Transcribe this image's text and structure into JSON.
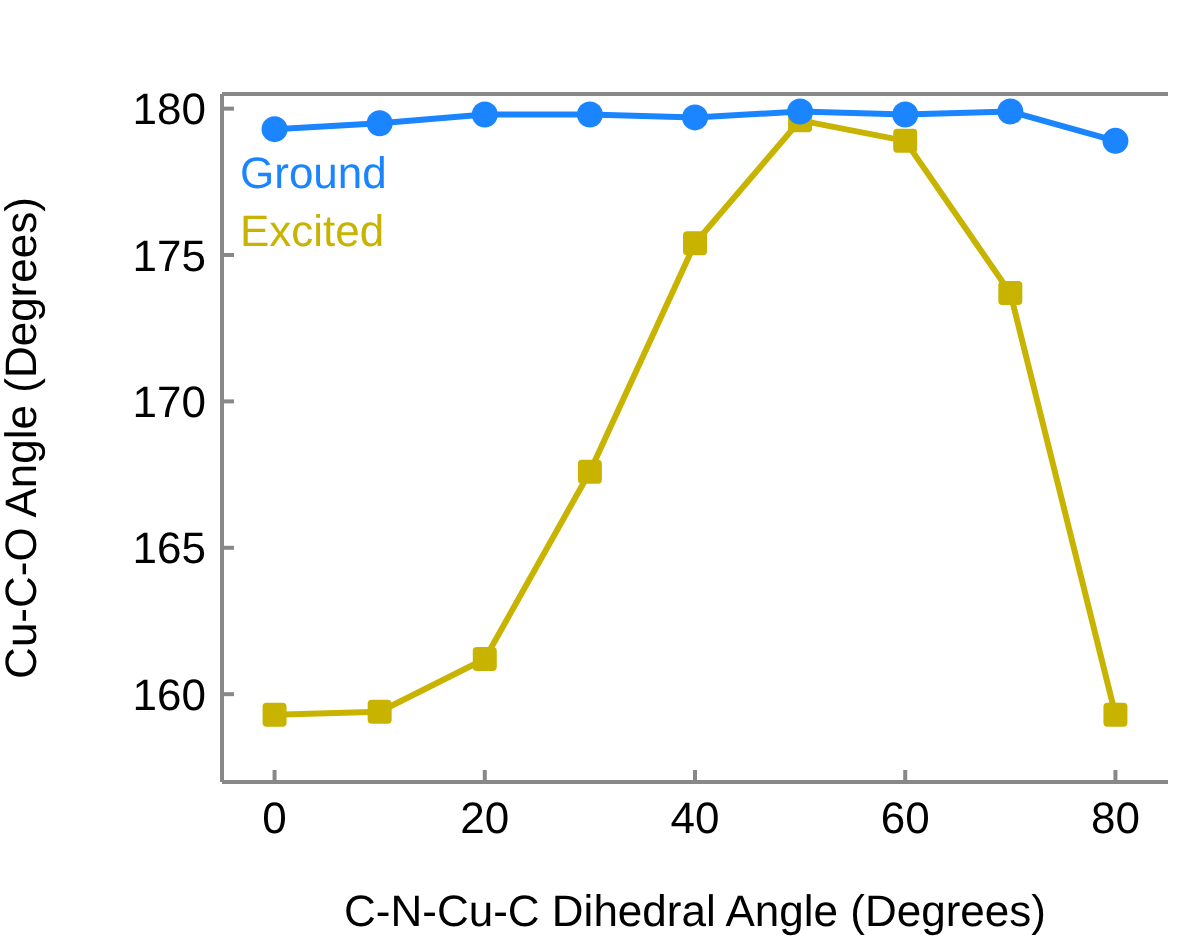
{
  "chart_data": {
    "type": "line",
    "xlabel": "C-N-Cu-C Dihedral Angle (Degrees)",
    "ylabel": "Cu-C-O Angle (Degrees)",
    "x": [
      0,
      10,
      20,
      30,
      40,
      50,
      60,
      70,
      80
    ],
    "series": [
      {
        "name": "Ground",
        "color": "#1a85ff",
        "marker": "circle",
        "values": [
          179.3,
          179.5,
          179.8,
          179.8,
          179.7,
          179.9,
          179.8,
          179.9,
          178.9
        ]
      },
      {
        "name": "Excited",
        "color": "#c8b400",
        "marker": "square",
        "values": [
          159.3,
          159.4,
          161.2,
          167.6,
          175.4,
          179.6,
          178.9,
          173.7,
          159.3
        ]
      }
    ],
    "xlim": [
      -5,
      85
    ],
    "xticks": [
      0,
      20,
      40,
      60,
      80
    ],
    "ylim": [
      157,
      180.5
    ],
    "yticks": [
      160,
      165,
      170,
      175,
      180
    ],
    "legend": "top left",
    "line_style": "solid"
  }
}
